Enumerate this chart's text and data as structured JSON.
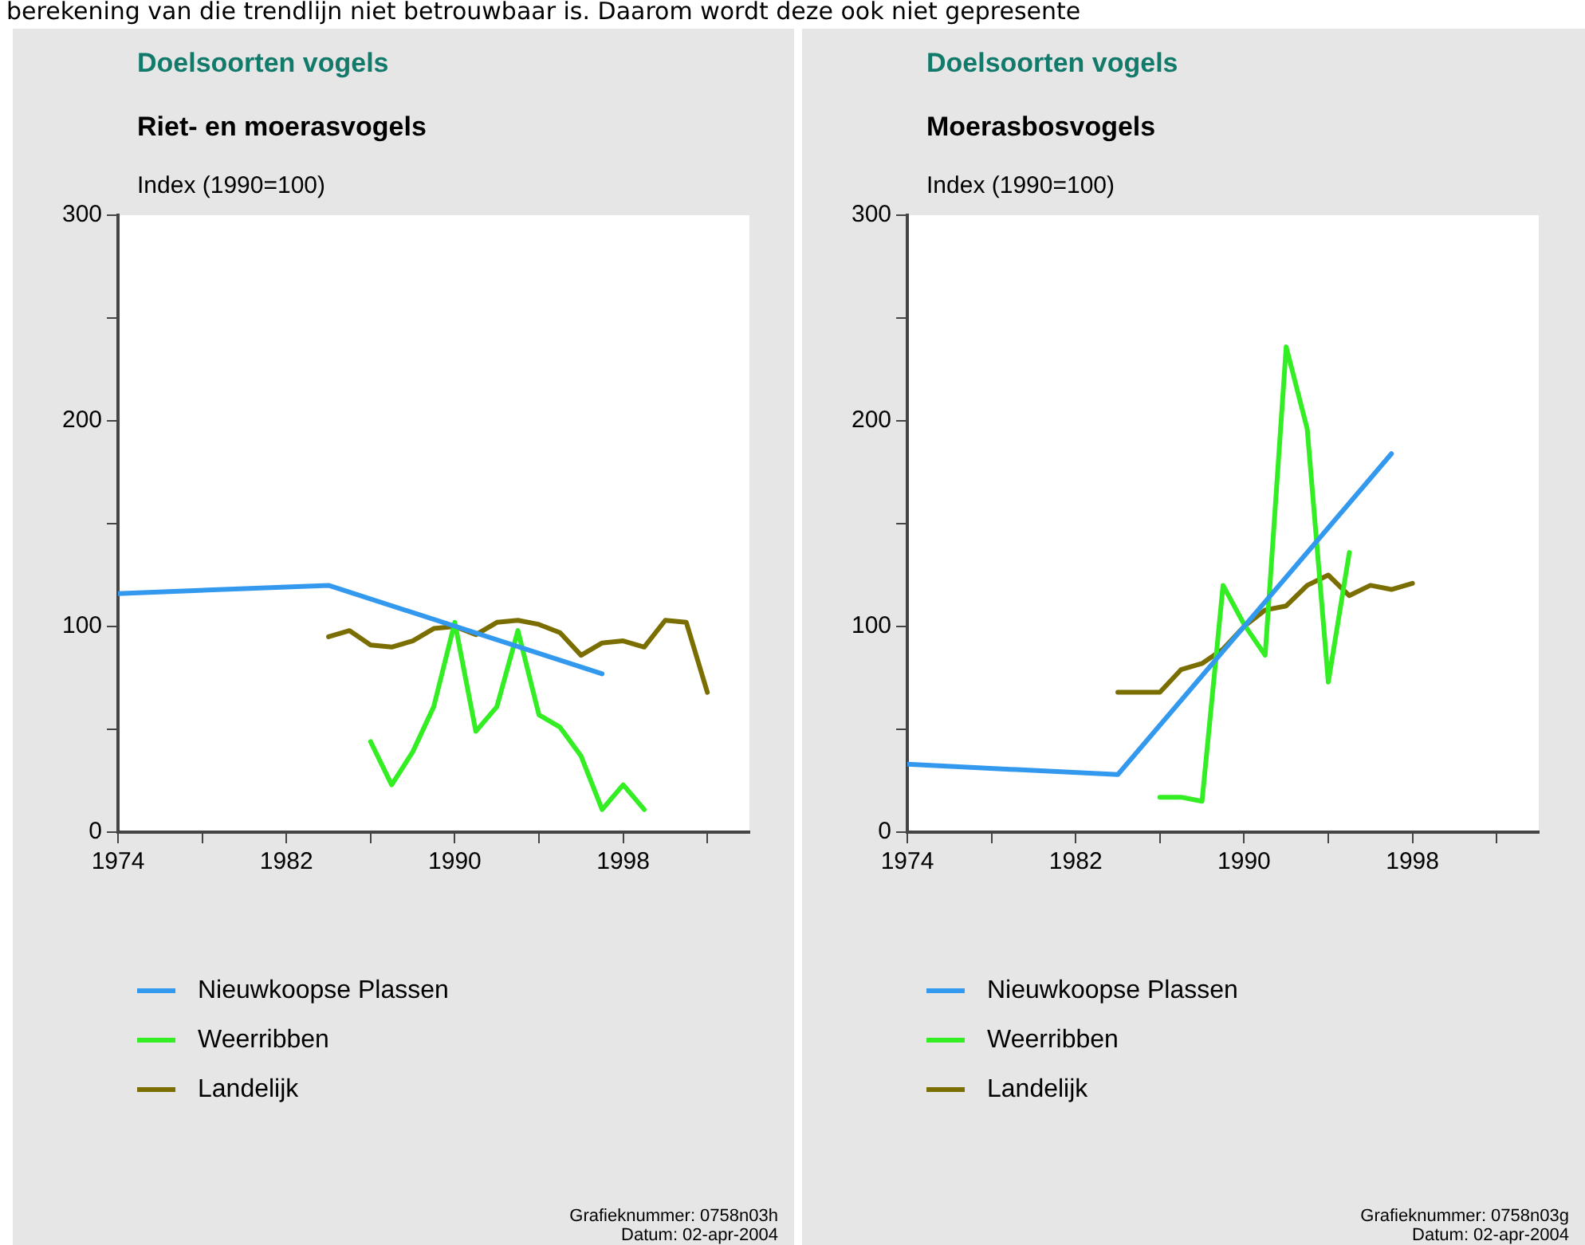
{
  "chart_data": [
    {
      "type": "line",
      "title": "Doelsoorten vogels",
      "subtitle": "Riet- en moerasvogels",
      "ylabel": "Index (1990=100)",
      "xlim": [
        1974,
        2004
      ],
      "xticks": [
        1974,
        {
          "value": 1978,
          "label": null
        },
        1982,
        {
          "value": 1986,
          "label": null
        },
        1990,
        {
          "value": 1994,
          "label": null
        },
        1998,
        {
          "value": 2002,
          "label": null
        }
      ],
      "ylim": [
        0,
        300
      ],
      "yticks": [
        0,
        {
          "value": 50,
          "label": null
        },
        100,
        {
          "value": 150,
          "label": null
        },
        200,
        {
          "value": 250,
          "label": null
        },
        300
      ],
      "grid": false,
      "legend": "bottom",
      "marker": "none",
      "line_style": "solid",
      "annotations": [
        "berekening van die trendlijn niet betrouwbaar is. Daarom wordt deze ook niet gepresente",
        "Grafieknummer: 0758n03h",
        "Datum: 02-apr-2004"
      ],
      "series": [
        {
          "name": "Nieuwkoopse Plassen",
          "color": "#3399ee",
          "x": [
            1974,
            1984,
            1997
          ],
          "values": [
            116,
            120,
            77
          ]
        },
        {
          "name": "Weerribben",
          "color": "#33ee22",
          "x": [
            1986,
            1987,
            1988,
            1989,
            1990,
            1991,
            1992,
            1993,
            1994,
            1995,
            1996,
            1997,
            1998,
            1999
          ],
          "values": [
            44,
            23,
            39,
            61,
            102,
            49,
            61,
            98,
            57,
            51,
            37,
            11,
            23,
            11
          ]
        },
        {
          "name": "Landelijk",
          "color": "#7a6e00",
          "x": [
            1984,
            1985,
            1986,
            1987,
            1988,
            1989,
            1990,
            1991,
            1992,
            1993,
            1994,
            1995,
            1996,
            1997,
            1998,
            1999,
            2000,
            2001,
            2002
          ],
          "values": [
            95,
            98,
            91,
            90,
            93,
            99,
            100,
            96,
            102,
            103,
            101,
            97,
            86,
            92,
            93,
            90,
            103,
            102,
            68
          ]
        }
      ]
    },
    {
      "type": "line",
      "title": "Doelsoorten vogels",
      "subtitle": "Moerasbosvogels",
      "ylabel": "Index (1990=100)",
      "xlim": [
        1974,
        2004
      ],
      "xticks": [
        1974,
        {
          "value": 1978,
          "label": null
        },
        1982,
        {
          "value": 1986,
          "label": null
        },
        1990,
        {
          "value": 1994,
          "label": null
        },
        1998,
        {
          "value": 2002,
          "label": null
        }
      ],
      "ylim": [
        0,
        300
      ],
      "yticks": [
        0,
        {
          "value": 50,
          "label": null
        },
        100,
        {
          "value": 150,
          "label": null
        },
        200,
        {
          "value": 250,
          "label": null
        },
        300
      ],
      "grid": false,
      "legend": "bottom",
      "marker": "none",
      "line_style": "solid",
      "annotations": [
        "Grafieknummer: 0758n03g",
        "Datum: 02-apr-2004"
      ],
      "series": [
        {
          "name": "Nieuwkoopse Plassen",
          "color": "#3399ee",
          "x": [
            1974,
            1984,
            1997
          ],
          "values": [
            33,
            28,
            184
          ]
        },
        {
          "name": "Weerribben",
          "color": "#33ee22",
          "x": [
            1986,
            1987,
            1988,
            1989,
            1990,
            1991,
            1992,
            1993,
            1994,
            1995
          ],
          "values": [
            17,
            17,
            15,
            120,
            101,
            86,
            236,
            196,
            73,
            136
          ]
        },
        {
          "name": "Landelijk",
          "color": "#7a6e00",
          "x": [
            1984,
            1985,
            1986,
            1987,
            1988,
            1989,
            1990,
            1991,
            1992,
            1993,
            1994,
            1995,
            1996,
            1997,
            1998
          ],
          "values": [
            68,
            68,
            68,
            79,
            82,
            89,
            100,
            108,
            110,
            120,
            125,
            115,
            120,
            118,
            121
          ]
        }
      ]
    }
  ]
}
